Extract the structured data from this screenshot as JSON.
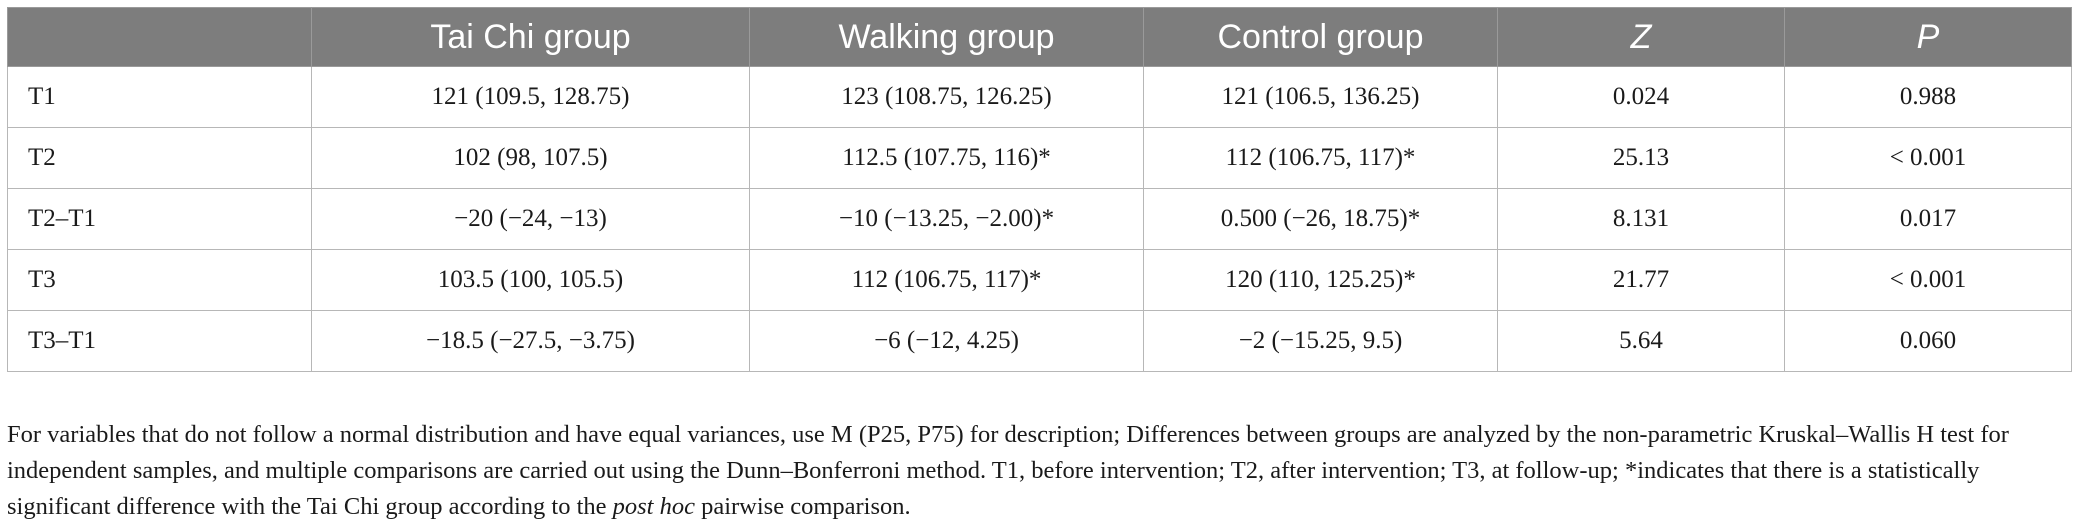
{
  "table": {
    "headers": [
      "",
      "Tai Chi group",
      "Walking group",
      "Control group",
      "Z",
      "P"
    ],
    "rows": [
      [
        "T1",
        "121 (109.5, 128.75)",
        "123 (108.75, 126.25)",
        "121 (106.5, 136.25)",
        "0.024",
        "0.988"
      ],
      [
        "T2",
        "102 (98, 107.5)",
        "112.5 (107.75, 116)*",
        "112 (106.75, 117)*",
        "25.13",
        "< 0.001"
      ],
      [
        "T2–T1",
        "−20 (−24, −13)",
        "−10 (−13.25, −2.00)*",
        "0.500 (−26, 18.75)*",
        "8.131",
        "0.017"
      ],
      [
        "T3",
        "103.5 (100, 105.5)",
        "112 (106.75, 117)*",
        "120 (110, 125.25)*",
        "21.77",
        "< 0.001"
      ],
      [
        "T3–T1",
        "−18.5 (−27.5, −3.75)",
        "−6 (−12, 4.25)",
        "−2 (−15.25, 9.5)",
        "5.64",
        "0.060"
      ]
    ]
  },
  "footnote": {
    "part1": "For variables that do not follow a normal distribution and have equal variances, use M (P25, P75) for description; Differences between groups are analyzed by the non-parametric Kruskal–Wallis H test for independent samples, and multiple comparisons are carried out using the Dunn–Bonferroni method. T1, before intervention; T2, after intervention; T3, at follow-up; *indicates that there is a statistically significant difference with the Tai Chi group according to the ",
    "italic": "post hoc",
    "part2": " pairwise comparison."
  }
}
